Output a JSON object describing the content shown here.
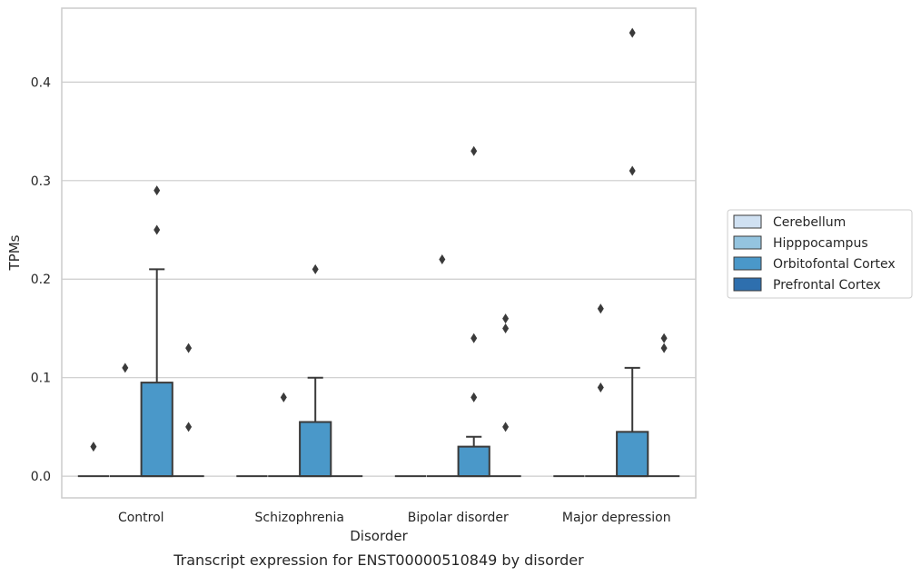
{
  "chart_data": {
    "type": "box",
    "xlabel": "Disorder",
    "ylabel": "TPMs",
    "caption": "Transcript expression for ENST00000510849 by disorder",
    "categories": [
      "Control",
      "Schizophrenia",
      "Bipolar disorder",
      "Major depression"
    ],
    "ylim": [
      -0.022,
      0.475
    ],
    "yticks": [
      0.0,
      0.1,
      0.2,
      0.3,
      0.4
    ],
    "ytick_labels": [
      "0.0",
      "0.1",
      "0.2",
      "0.3",
      "0.4"
    ],
    "grid": "horizontal",
    "legend_placement": "right",
    "colors": {
      "Cerebellum": "#d0e1f2",
      "Hipppocampus": "#94c4df",
      "Orbitofontal Cortex": "#4a98c9",
      "Prefrontal Cortex": "#2e6fae",
      "line": "#3a3a3a",
      "outlier": "#3a3a3a",
      "grid": "#cccccc"
    },
    "legend": [
      "Cerebellum",
      "Hipppocampus",
      "Orbitofontal Cortex",
      "Prefrontal Cortex"
    ],
    "series": [
      {
        "name": "Cerebellum",
        "boxes": [
          {
            "q1": 0,
            "median": 0,
            "q3": 0,
            "whisker_low": 0,
            "whisker_high": 0,
            "outliers": [
              0.03
            ]
          },
          {
            "q1": 0,
            "median": 0,
            "q3": 0,
            "whisker_low": 0,
            "whisker_high": 0,
            "outliers": []
          },
          {
            "q1": 0,
            "median": 0,
            "q3": 0,
            "whisker_low": 0,
            "whisker_high": 0,
            "outliers": []
          },
          {
            "q1": 0,
            "median": 0,
            "q3": 0,
            "whisker_low": 0,
            "whisker_high": 0,
            "outliers": []
          }
        ]
      },
      {
        "name": "Hipppocampus",
        "boxes": [
          {
            "q1": 0,
            "median": 0,
            "q3": 0,
            "whisker_low": 0,
            "whisker_high": 0,
            "outliers": [
              0.11
            ]
          },
          {
            "q1": 0,
            "median": 0,
            "q3": 0,
            "whisker_low": 0,
            "whisker_high": 0,
            "outliers": [
              0.08
            ]
          },
          {
            "q1": 0,
            "median": 0,
            "q3": 0,
            "whisker_low": 0,
            "whisker_high": 0,
            "outliers": [
              0.22
            ]
          },
          {
            "q1": 0,
            "median": 0,
            "q3": 0,
            "whisker_low": 0,
            "whisker_high": 0,
            "outliers": [
              0.09,
              0.17
            ]
          }
        ]
      },
      {
        "name": "Orbitofontal Cortex",
        "boxes": [
          {
            "q1": 0,
            "median": 0,
            "q3": 0.095,
            "whisker_low": 0,
            "whisker_high": 0.21,
            "outliers": [
              0.25,
              0.29
            ]
          },
          {
            "q1": 0,
            "median": 0,
            "q3": 0.055,
            "whisker_low": 0,
            "whisker_high": 0.1,
            "outliers": [
              0.21
            ]
          },
          {
            "q1": 0,
            "median": 0,
            "q3": 0.03,
            "whisker_low": 0,
            "whisker_high": 0.04,
            "outliers": [
              0.08,
              0.14,
              0.33
            ]
          },
          {
            "q1": 0,
            "median": 0,
            "q3": 0.045,
            "whisker_low": 0,
            "whisker_high": 0.11,
            "outliers": [
              0.31,
              0.45
            ]
          }
        ]
      },
      {
        "name": "Prefrontal Cortex",
        "boxes": [
          {
            "q1": 0,
            "median": 0,
            "q3": 0,
            "whisker_low": 0,
            "whisker_high": 0,
            "outliers": [
              0.05,
              0.13
            ]
          },
          {
            "q1": 0,
            "median": 0,
            "q3": 0,
            "whisker_low": 0,
            "whisker_high": 0,
            "outliers": []
          },
          {
            "q1": 0,
            "median": 0,
            "q3": 0,
            "whisker_low": 0,
            "whisker_high": 0,
            "outliers": [
              0.05,
              0.15,
              0.16
            ]
          },
          {
            "q1": 0,
            "median": 0,
            "q3": 0,
            "whisker_low": 0,
            "whisker_high": 0,
            "outliers": [
              0.13,
              0.14
            ]
          }
        ]
      }
    ]
  }
}
